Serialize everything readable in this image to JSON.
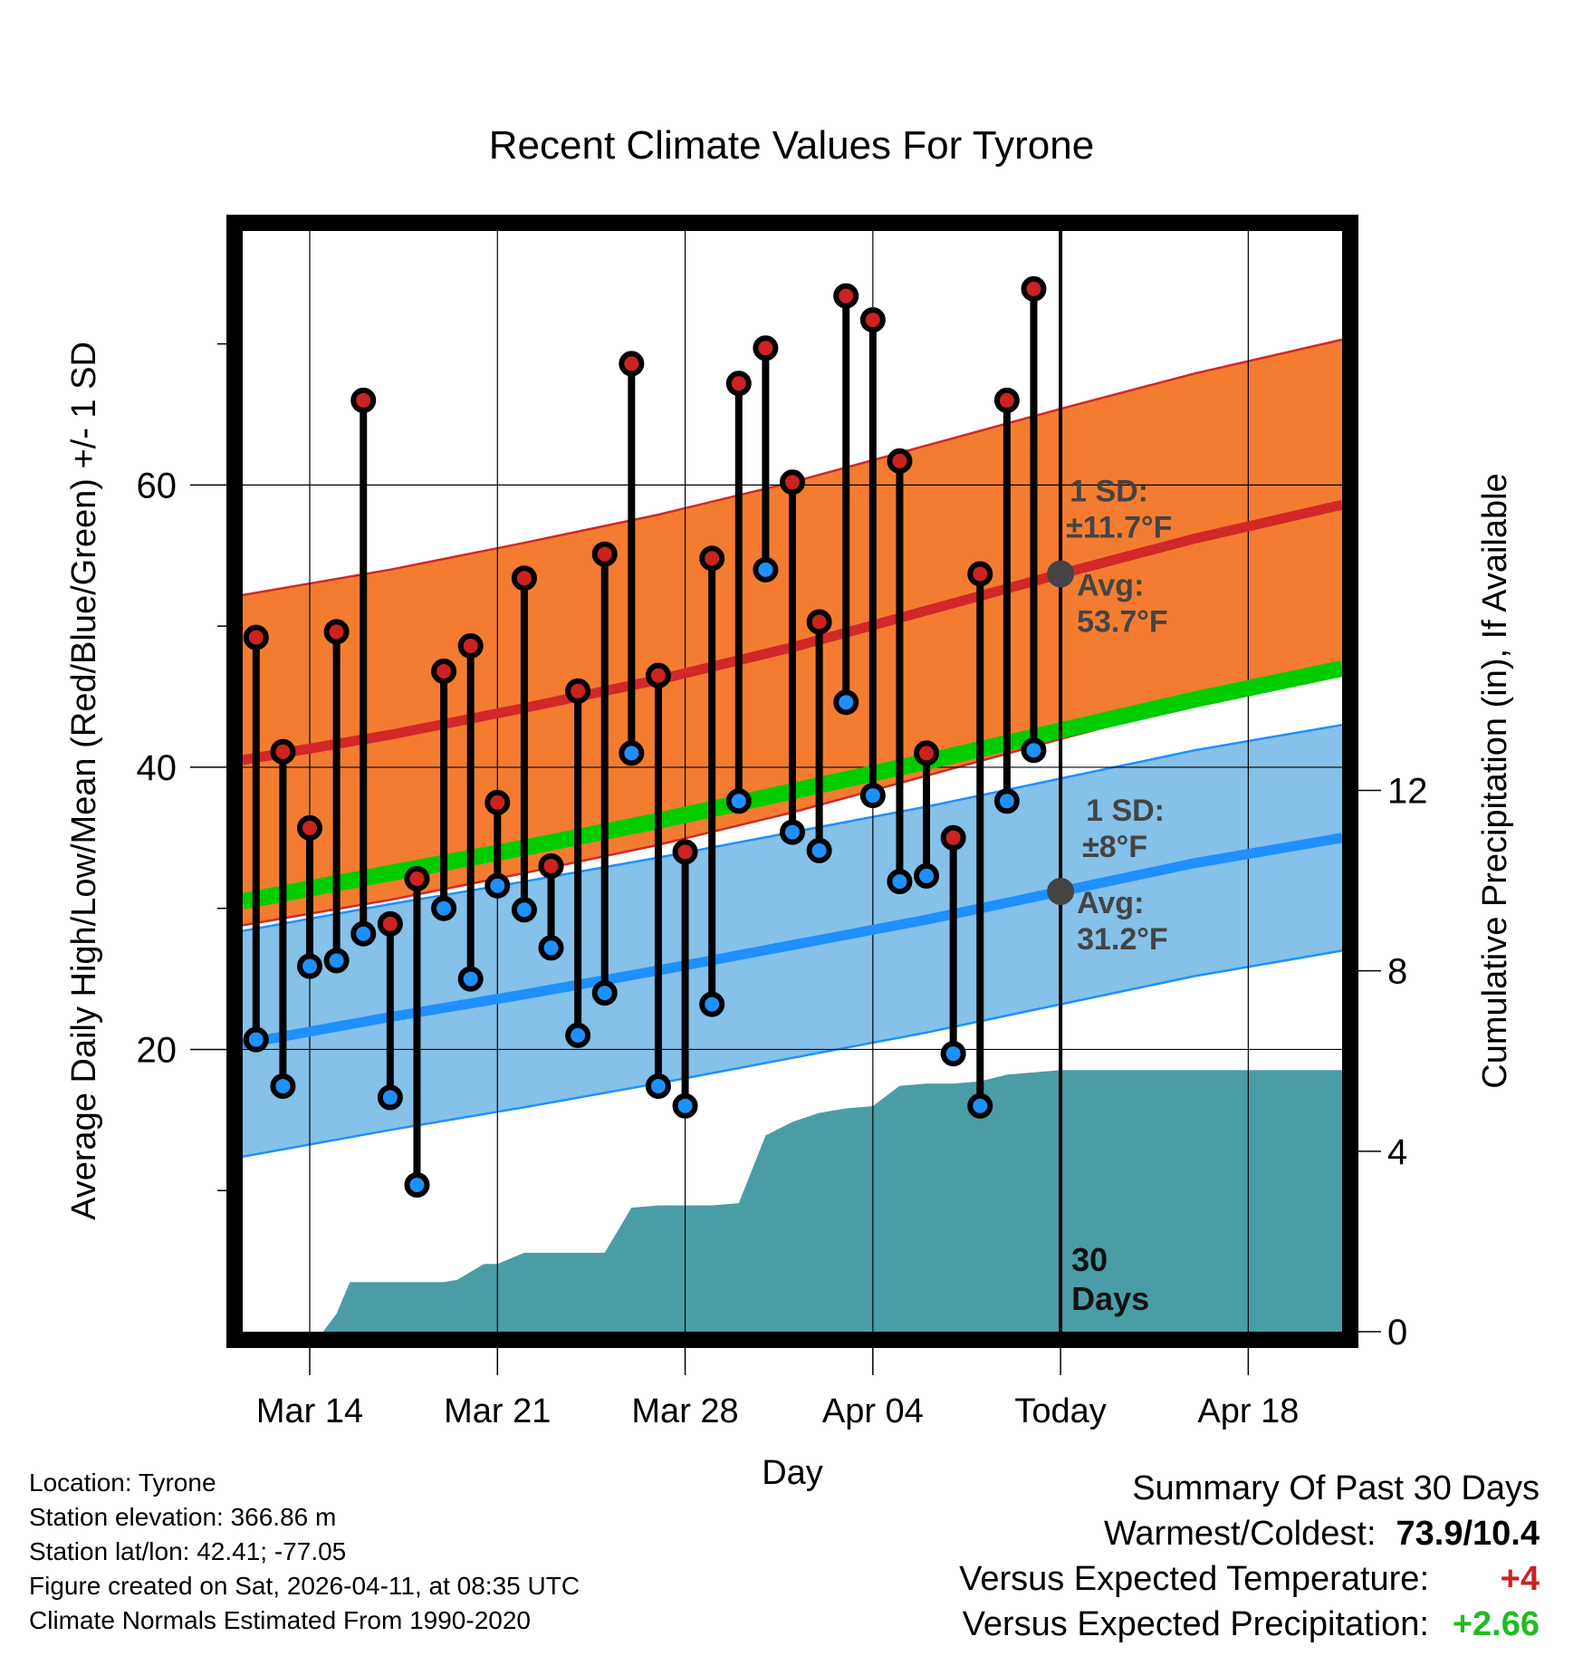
{
  "chart_data": {
    "type": "line",
    "title": "Recent Climate Values For Tyrone",
    "xlabel": "Day",
    "ylabel": "Average Daily High/Low/Mean (Red/Blue/Green) +/- 1 SD",
    "y2label": "Cumulative Precipitation (in), If Available",
    "ylim": [
      0,
      78
    ],
    "y2lim": [
      0,
      24.4
    ],
    "xlim": [
      -0.5,
      40.5
    ],
    "x_ticks": [
      {
        "day": 2,
        "label": "Mar 14"
      },
      {
        "day": 9,
        "label": "Mar 21"
      },
      {
        "day": 16,
        "label": "Mar 28"
      },
      {
        "day": 23,
        "label": "Apr 04"
      },
      {
        "day": 30,
        "label": "Today"
      },
      {
        "day": 37,
        "label": "Apr 18"
      }
    ],
    "y_ticks": [
      20,
      40,
      60
    ],
    "y2_ticks": [
      0,
      4,
      8,
      12
    ],
    "normals": {
      "days": [
        -0.5,
        5,
        10,
        15,
        20,
        25,
        30,
        35,
        40.5
      ],
      "high_mean": [
        40.5,
        42.3,
        44.2,
        46.2,
        48.5,
        51.1,
        53.7,
        56.2,
        58.6
      ],
      "high_sd": 11.7,
      "low_mean": [
        20.4,
        22.3,
        23.9,
        25.6,
        27.4,
        29.2,
        31.2,
        33.2,
        35.0
      ],
      "low_sd": 8,
      "avg_mean": [
        30.5,
        32.5,
        34.3,
        36.2,
        38.3,
        40.4,
        42.6,
        44.8,
        47.0
      ]
    },
    "daily_highs": [
      49.2,
      41.1,
      35.7,
      49.6,
      66.0,
      28.9,
      32.1,
      46.8,
      48.6,
      37.5,
      53.4,
      33.0,
      45.4,
      55.1,
      68.6,
      46.5,
      34.0,
      54.8,
      67.2,
      69.7,
      60.2,
      50.3,
      73.4,
      71.7,
      61.7,
      41.0,
      35.0,
      53.7,
      66.0,
      73.9
    ],
    "daily_lows": [
      20.7,
      17.4,
      25.9,
      26.3,
      28.2,
      16.6,
      10.4,
      30.0,
      25.0,
      31.6,
      29.9,
      27.2,
      21.0,
      24.0,
      41.0,
      17.4,
      16.0,
      23.2,
      37.6,
      54.0,
      35.4,
      34.1,
      44.6,
      38.0,
      31.9,
      32.3,
      19.7,
      16.0,
      37.6,
      41.2
    ],
    "cumulative_precip": {
      "days": [
        -0.5,
        2.5,
        3,
        3.5,
        6,
        7,
        7.5,
        8.5,
        9,
        10,
        11,
        12,
        13,
        14,
        15,
        16,
        17,
        18,
        19,
        20,
        21,
        22,
        23,
        24,
        25,
        26,
        27,
        28,
        29,
        30,
        40.5
      ],
      "values": [
        0,
        0,
        0.4,
        1.1,
        1.1,
        1.1,
        1.15,
        1.5,
        1.5,
        1.75,
        1.75,
        1.75,
        1.75,
        2.75,
        2.8,
        2.8,
        2.8,
        2.85,
        4.35,
        4.65,
        4.85,
        4.95,
        5.0,
        5.45,
        5.5,
        5.5,
        5.55,
        5.7,
        5.75,
        5.8,
        5.8
      ]
    },
    "annotations": {
      "high_sd_label": "1 SD:",
      "high_sd_value": "±11.7°F",
      "high_avg_label": "Avg:",
      "high_avg_value": "53.7°F",
      "low_sd_label": "1 SD:",
      "low_sd_value": "±8°F",
      "low_avg_label": "Avg:",
      "low_avg_value": "31.2°F",
      "period_number": "30",
      "period_unit": "Days"
    },
    "colors": {
      "high_band": "#f47c30",
      "high_line": "#d22828",
      "low_band": "#85c1e9",
      "low_line": "#1e90ff",
      "avg_line": "#00cc00",
      "precip": "#4a9da6",
      "high_dot": "#cc2222",
      "low_dot": "#1e90ff",
      "marker": "#444444"
    }
  },
  "info": {
    "location": "Location: Tyrone",
    "elevation": "Station elevation: 366.86 m",
    "latlon": "Station lat/lon: 42.41; -77.05",
    "created": "Figure created on Sat, 2026-04-11, at 08:35 UTC",
    "normals": "Climate Normals Estimated From 1990-2020"
  },
  "summary": {
    "title": "Summary Of Past 30 Days",
    "warmest_label": "Warmest/Coldest:",
    "warmest_value": "73.9/10.4",
    "temp_label": "Versus Expected Temperature:",
    "temp_value": "+4",
    "precip_label": "Versus Expected Precipitation:",
    "precip_value": "+2.66"
  }
}
